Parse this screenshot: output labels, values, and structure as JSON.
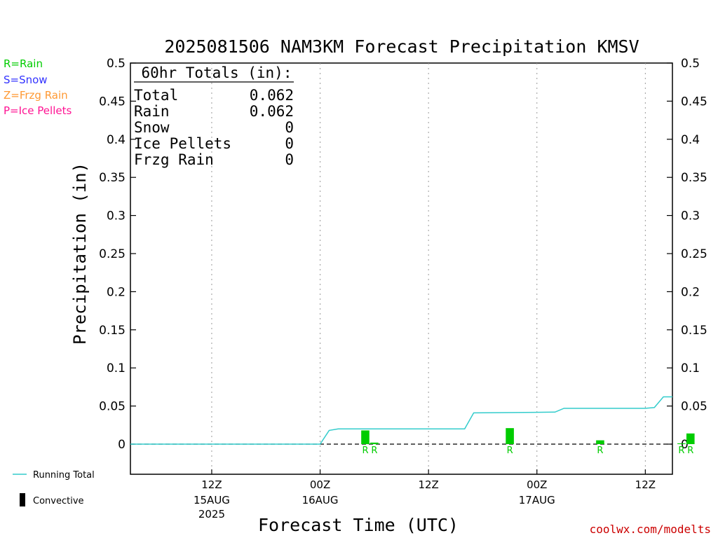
{
  "chart_data": {
    "type": "bar",
    "title": "2025081506 NAM3KM Forecast Precipitation KMSV",
    "xlabel": "Forecast Time (UTC)",
    "ylabel": "Precipitation (in)",
    "ylim": [
      0,
      0.5
    ],
    "yticks": [
      "0",
      "0.05",
      "0.1",
      "0.15",
      "0.2",
      "0.25",
      "0.3",
      "0.35",
      "0.4",
      "0.45",
      "0.5"
    ],
    "xlim_hours": [
      -3,
      57
    ],
    "xticks": [
      {
        "hour": 6,
        "label": "12Z",
        "sub1": "15AUG",
        "sub2": "2025"
      },
      {
        "hour": 18,
        "label": "00Z",
        "sub1": "16AUG",
        "sub2": ""
      },
      {
        "hour": 30,
        "label": "12Z",
        "sub1": "",
        "sub2": ""
      },
      {
        "hour": 42,
        "label": "00Z",
        "sub1": "17AUG",
        "sub2": ""
      },
      {
        "hour": 54,
        "label": "12Z",
        "sub1": "",
        "sub2": ""
      }
    ],
    "bars": [
      {
        "hour": 24,
        "value": 0.018,
        "type": "R"
      },
      {
        "hour": 25,
        "value": 0.002,
        "type": "R"
      },
      {
        "hour": 40,
        "value": 0.021,
        "type": "R"
      },
      {
        "hour": 50,
        "value": 0.005,
        "type": "R"
      },
      {
        "hour": 59,
        "value": 0.001,
        "type": "R"
      },
      {
        "hour": 60,
        "value": 0.014,
        "type": "R"
      }
    ],
    "running_total": [
      {
        "hour": 0,
        "value": 0
      },
      {
        "hour": 21,
        "value": 0
      },
      {
        "hour": 22,
        "value": 0.018
      },
      {
        "hour": 23,
        "value": 0.02
      },
      {
        "hour": 37,
        "value": 0.02
      },
      {
        "hour": 38,
        "value": 0.041
      },
      {
        "hour": 47,
        "value": 0.042
      },
      {
        "hour": 48,
        "value": 0.047
      },
      {
        "hour": 57,
        "value": 0.047
      },
      {
        "hour": 58,
        "value": 0.048
      },
      {
        "hour": 59,
        "value": 0.062
      },
      {
        "hour": 60,
        "value": 0.062
      }
    ],
    "colors": {
      "rain": "#00cc00",
      "snow": "#3333ff",
      "frzg_rain": "#ff9933",
      "ice_pellets": "#ff1493",
      "running_total": "#33cccc",
      "credit": "#cc0000"
    }
  },
  "legend": {
    "rain": "R=Rain",
    "snow": "S=Snow",
    "frzg_rain": "Z=Frzg Rain",
    "ice_pellets": "P=Ice Pellets",
    "running_total": "Running Total",
    "convective": "Convective"
  },
  "totals": {
    "header": "60hr Totals (in):",
    "rows": [
      {
        "label": "Total",
        "value": "0.062"
      },
      {
        "label": "Rain",
        "value": "0.062"
      },
      {
        "label": "Snow",
        "value": "0"
      },
      {
        "label": "Ice Pellets",
        "value": "0"
      },
      {
        "label": "Frzg Rain",
        "value": "0"
      }
    ]
  },
  "credit": "coolwx.com/modelts"
}
